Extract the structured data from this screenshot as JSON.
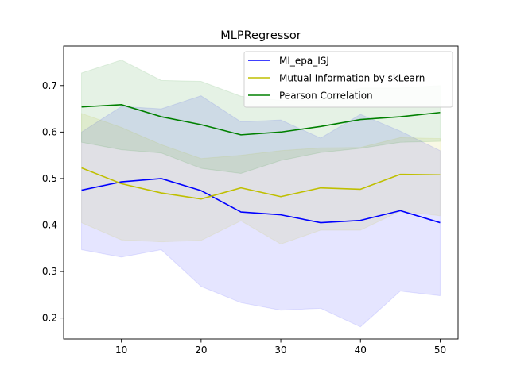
{
  "chart_data": {
    "type": "line",
    "title": "MLPRegressor",
    "xlabel": "",
    "ylabel": "",
    "x": [
      5,
      10,
      15,
      20,
      25,
      30,
      35,
      40,
      45,
      50
    ],
    "xlim": [
      2.75,
      52.25
    ],
    "ylim": [
      0.155,
      0.785
    ],
    "xticks": [
      10,
      20,
      30,
      40,
      50
    ],
    "yticks": [
      0.2,
      0.3,
      0.4,
      0.5,
      0.6,
      0.7
    ],
    "grid": false,
    "legend_position": "top-right",
    "series": [
      {
        "name": "MI_epa_ISJ",
        "color": "#0000ff",
        "band_color": "#0000ff",
        "values": [
          0.475,
          0.493,
          0.5,
          0.474,
          0.428,
          0.422,
          0.405,
          0.41,
          0.431,
          0.405
        ],
        "lower": [
          0.347,
          0.331,
          0.347,
          0.268,
          0.233,
          0.217,
          0.221,
          0.181,
          0.258,
          0.248
        ],
        "upper": [
          0.6,
          0.655,
          0.65,
          0.678,
          0.622,
          0.626,
          0.587,
          0.638,
          0.602,
          0.56
        ]
      },
      {
        "name": "Mutual Information by skLearn",
        "color": "#bfbf00",
        "band_color": "#bfbf00",
        "values": [
          0.523,
          0.489,
          0.469,
          0.456,
          0.48,
          0.461,
          0.48,
          0.477,
          0.509,
          0.508
        ],
        "lower": [
          0.405,
          0.368,
          0.364,
          0.367,
          0.409,
          0.359,
          0.389,
          0.389,
          0.43,
          0.42
        ],
        "upper": [
          0.64,
          0.61,
          0.573,
          0.543,
          0.55,
          0.56,
          0.566,
          0.567,
          0.588,
          0.586
        ]
      },
      {
        "name": "Pearson Correlation",
        "color": "#008000",
        "band_color": "#008000",
        "values": [
          0.654,
          0.659,
          0.633,
          0.616,
          0.594,
          0.6,
          0.612,
          0.627,
          0.633,
          0.642
        ],
        "lower": [
          0.578,
          0.562,
          0.555,
          0.522,
          0.511,
          0.539,
          0.556,
          0.565,
          0.578,
          0.58
        ],
        "upper": [
          0.727,
          0.755,
          0.711,
          0.709,
          0.677,
          0.668,
          0.669,
          0.695,
          0.695,
          0.7
        ]
      }
    ]
  }
}
